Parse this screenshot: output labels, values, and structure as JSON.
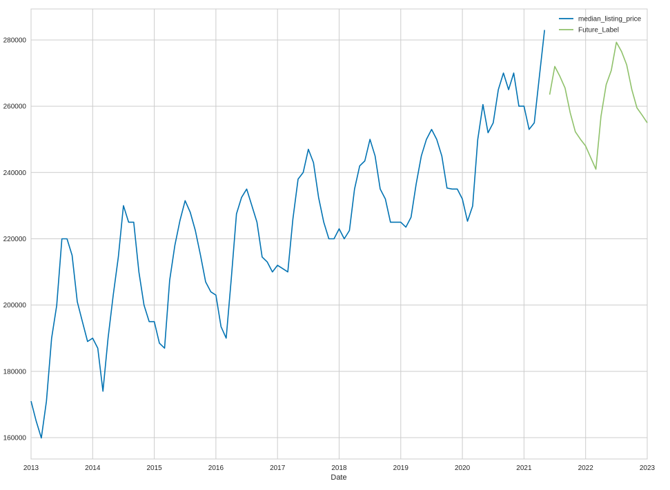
{
  "chart_data": {
    "type": "line",
    "title": "",
    "xlabel": "Date",
    "ylabel": "",
    "xlim": [
      "2013-01",
      "2023-01"
    ],
    "ylim": [
      153550,
      289350
    ],
    "grid": true,
    "legend_position": "top-right",
    "x_ticks": [
      "2013",
      "2014",
      "2015",
      "2016",
      "2017",
      "2018",
      "2019",
      "2020",
      "2021",
      "2022",
      "2023"
    ],
    "y_ticks": [
      160000,
      180000,
      200000,
      220000,
      240000,
      260000,
      280000
    ],
    "series": [
      {
        "name": "median_listing_price",
        "color": "#0072b2",
        "start": "2013-01",
        "values": [
          171000,
          165000,
          159900,
          171000,
          190000,
          199900,
          220000,
          220000,
          215000,
          201000,
          195000,
          189000,
          190000,
          187000,
          174000,
          190000,
          203000,
          214500,
          230000,
          225000,
          225000,
          210000,
          200000,
          195000,
          195000,
          188500,
          187000,
          207500,
          218000,
          225500,
          231500,
          228000,
          222500,
          215000,
          207000,
          204000,
          203000,
          193500,
          190000,
          208000,
          227500,
          232500,
          235000,
          230000,
          225000,
          214500,
          213000,
          210000,
          212000,
          211000,
          210000,
          226000,
          238000,
          240000,
          247000,
          243000,
          232500,
          225000,
          220000,
          220000,
          223000,
          220000,
          222500,
          235000,
          242000,
          243500,
          250000,
          245000,
          235000,
          232000,
          225000,
          225000,
          225000,
          223500,
          226500,
          236500,
          245000,
          250000,
          253000,
          250000,
          245000,
          235300,
          235000,
          235000,
          232000,
          225300,
          229900,
          250000,
          260500,
          252000,
          255000,
          265000,
          270000,
          265000,
          270000,
          260000,
          260000,
          253000,
          255000,
          269000,
          283000
        ]
      },
      {
        "name": "Future_Label",
        "color": "#8fc16a",
        "start": "2021-06",
        "values": [
          263500,
          272000,
          269000,
          265500,
          258000,
          252300,
          250000,
          248000,
          244500,
          241000,
          257000,
          266500,
          270800,
          279300,
          276500,
          272500,
          265000,
          259500,
          257300,
          255000
        ]
      }
    ]
  }
}
